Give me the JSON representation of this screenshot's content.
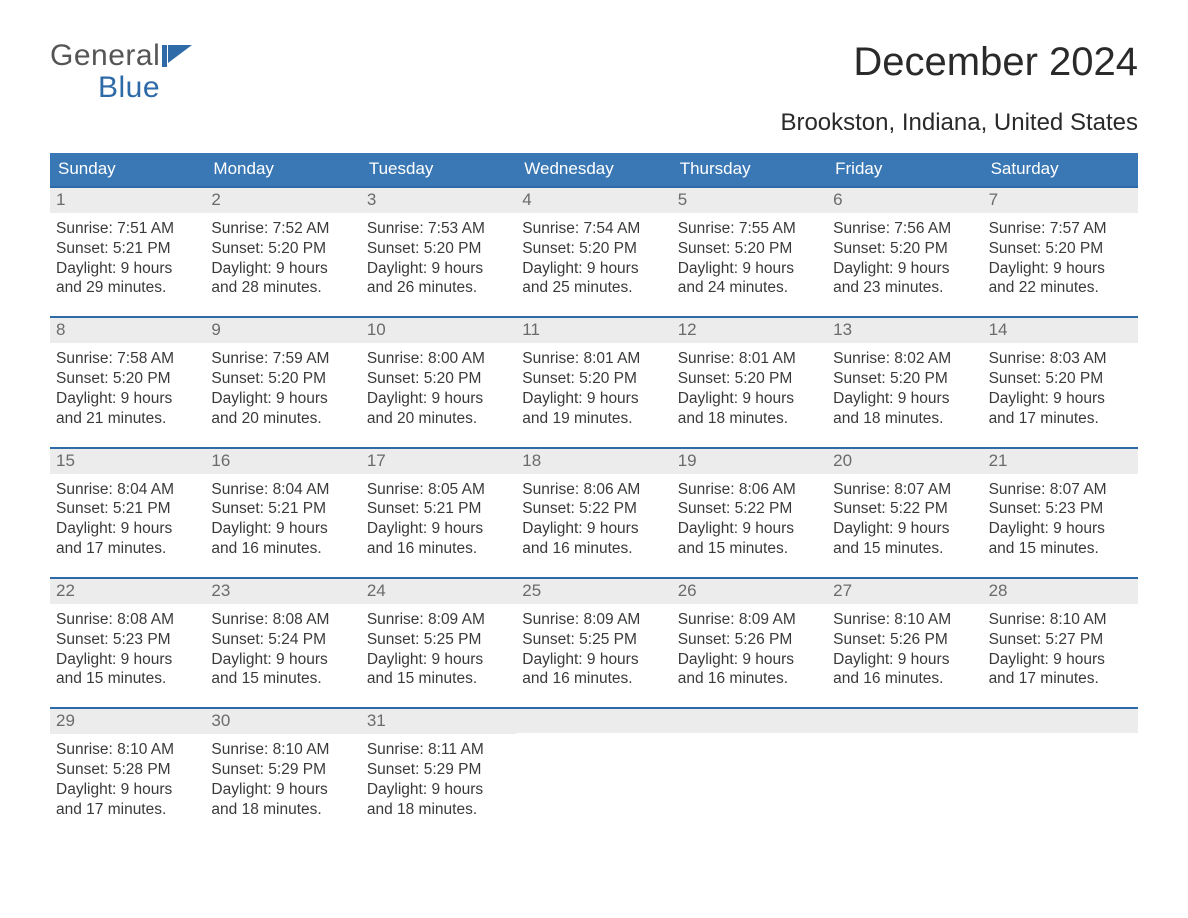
{
  "logo": {
    "line1": "General",
    "line2": "Blue"
  },
  "title": "December 2024",
  "subtitle": "Brookston, Indiana, United States",
  "weekdays": [
    "Sunday",
    "Monday",
    "Tuesday",
    "Wednesday",
    "Thursday",
    "Friday",
    "Saturday"
  ],
  "colors": {
    "header_blue": "#3a78b5",
    "accent_blue": "#2f6aa8",
    "date_bar_bg": "#ececec"
  },
  "weeks": [
    [
      {
        "date": "1",
        "sunrise": "Sunrise: 7:51 AM",
        "sunset": "Sunset: 5:21 PM",
        "day1": "Daylight: 9 hours",
        "day2": "and 29 minutes."
      },
      {
        "date": "2",
        "sunrise": "Sunrise: 7:52 AM",
        "sunset": "Sunset: 5:20 PM",
        "day1": "Daylight: 9 hours",
        "day2": "and 28 minutes."
      },
      {
        "date": "3",
        "sunrise": "Sunrise: 7:53 AM",
        "sunset": "Sunset: 5:20 PM",
        "day1": "Daylight: 9 hours",
        "day2": "and 26 minutes."
      },
      {
        "date": "4",
        "sunrise": "Sunrise: 7:54 AM",
        "sunset": "Sunset: 5:20 PM",
        "day1": "Daylight: 9 hours",
        "day2": "and 25 minutes."
      },
      {
        "date": "5",
        "sunrise": "Sunrise: 7:55 AM",
        "sunset": "Sunset: 5:20 PM",
        "day1": "Daylight: 9 hours",
        "day2": "and 24 minutes."
      },
      {
        "date": "6",
        "sunrise": "Sunrise: 7:56 AM",
        "sunset": "Sunset: 5:20 PM",
        "day1": "Daylight: 9 hours",
        "day2": "and 23 minutes."
      },
      {
        "date": "7",
        "sunrise": "Sunrise: 7:57 AM",
        "sunset": "Sunset: 5:20 PM",
        "day1": "Daylight: 9 hours",
        "day2": "and 22 minutes."
      }
    ],
    [
      {
        "date": "8",
        "sunrise": "Sunrise: 7:58 AM",
        "sunset": "Sunset: 5:20 PM",
        "day1": "Daylight: 9 hours",
        "day2": "and 21 minutes."
      },
      {
        "date": "9",
        "sunrise": "Sunrise: 7:59 AM",
        "sunset": "Sunset: 5:20 PM",
        "day1": "Daylight: 9 hours",
        "day2": "and 20 minutes."
      },
      {
        "date": "10",
        "sunrise": "Sunrise: 8:00 AM",
        "sunset": "Sunset: 5:20 PM",
        "day1": "Daylight: 9 hours",
        "day2": "and 20 minutes."
      },
      {
        "date": "11",
        "sunrise": "Sunrise: 8:01 AM",
        "sunset": "Sunset: 5:20 PM",
        "day1": "Daylight: 9 hours",
        "day2": "and 19 minutes."
      },
      {
        "date": "12",
        "sunrise": "Sunrise: 8:01 AM",
        "sunset": "Sunset: 5:20 PM",
        "day1": "Daylight: 9 hours",
        "day2": "and 18 minutes."
      },
      {
        "date": "13",
        "sunrise": "Sunrise: 8:02 AM",
        "sunset": "Sunset: 5:20 PM",
        "day1": "Daylight: 9 hours",
        "day2": "and 18 minutes."
      },
      {
        "date": "14",
        "sunrise": "Sunrise: 8:03 AM",
        "sunset": "Sunset: 5:20 PM",
        "day1": "Daylight: 9 hours",
        "day2": "and 17 minutes."
      }
    ],
    [
      {
        "date": "15",
        "sunrise": "Sunrise: 8:04 AM",
        "sunset": "Sunset: 5:21 PM",
        "day1": "Daylight: 9 hours",
        "day2": "and 17 minutes."
      },
      {
        "date": "16",
        "sunrise": "Sunrise: 8:04 AM",
        "sunset": "Sunset: 5:21 PM",
        "day1": "Daylight: 9 hours",
        "day2": "and 16 minutes."
      },
      {
        "date": "17",
        "sunrise": "Sunrise: 8:05 AM",
        "sunset": "Sunset: 5:21 PM",
        "day1": "Daylight: 9 hours",
        "day2": "and 16 minutes."
      },
      {
        "date": "18",
        "sunrise": "Sunrise: 8:06 AM",
        "sunset": "Sunset: 5:22 PM",
        "day1": "Daylight: 9 hours",
        "day2": "and 16 minutes."
      },
      {
        "date": "19",
        "sunrise": "Sunrise: 8:06 AM",
        "sunset": "Sunset: 5:22 PM",
        "day1": "Daylight: 9 hours",
        "day2": "and 15 minutes."
      },
      {
        "date": "20",
        "sunrise": "Sunrise: 8:07 AM",
        "sunset": "Sunset: 5:22 PM",
        "day1": "Daylight: 9 hours",
        "day2": "and 15 minutes."
      },
      {
        "date": "21",
        "sunrise": "Sunrise: 8:07 AM",
        "sunset": "Sunset: 5:23 PM",
        "day1": "Daylight: 9 hours",
        "day2": "and 15 minutes."
      }
    ],
    [
      {
        "date": "22",
        "sunrise": "Sunrise: 8:08 AM",
        "sunset": "Sunset: 5:23 PM",
        "day1": "Daylight: 9 hours",
        "day2": "and 15 minutes."
      },
      {
        "date": "23",
        "sunrise": "Sunrise: 8:08 AM",
        "sunset": "Sunset: 5:24 PM",
        "day1": "Daylight: 9 hours",
        "day2": "and 15 minutes."
      },
      {
        "date": "24",
        "sunrise": "Sunrise: 8:09 AM",
        "sunset": "Sunset: 5:25 PM",
        "day1": "Daylight: 9 hours",
        "day2": "and 15 minutes."
      },
      {
        "date": "25",
        "sunrise": "Sunrise: 8:09 AM",
        "sunset": "Sunset: 5:25 PM",
        "day1": "Daylight: 9 hours",
        "day2": "and 16 minutes."
      },
      {
        "date": "26",
        "sunrise": "Sunrise: 8:09 AM",
        "sunset": "Sunset: 5:26 PM",
        "day1": "Daylight: 9 hours",
        "day2": "and 16 minutes."
      },
      {
        "date": "27",
        "sunrise": "Sunrise: 8:10 AM",
        "sunset": "Sunset: 5:26 PM",
        "day1": "Daylight: 9 hours",
        "day2": "and 16 minutes."
      },
      {
        "date": "28",
        "sunrise": "Sunrise: 8:10 AM",
        "sunset": "Sunset: 5:27 PM",
        "day1": "Daylight: 9 hours",
        "day2": "and 17 minutes."
      }
    ],
    [
      {
        "date": "29",
        "sunrise": "Sunrise: 8:10 AM",
        "sunset": "Sunset: 5:28 PM",
        "day1": "Daylight: 9 hours",
        "day2": "and 17 minutes."
      },
      {
        "date": "30",
        "sunrise": "Sunrise: 8:10 AM",
        "sunset": "Sunset: 5:29 PM",
        "day1": "Daylight: 9 hours",
        "day2": "and 18 minutes."
      },
      {
        "date": "31",
        "sunrise": "Sunrise: 8:11 AM",
        "sunset": "Sunset: 5:29 PM",
        "day1": "Daylight: 9 hours",
        "day2": "and 18 minutes."
      },
      {
        "empty": true
      },
      {
        "empty": true
      },
      {
        "empty": true
      },
      {
        "empty": true
      }
    ]
  ]
}
